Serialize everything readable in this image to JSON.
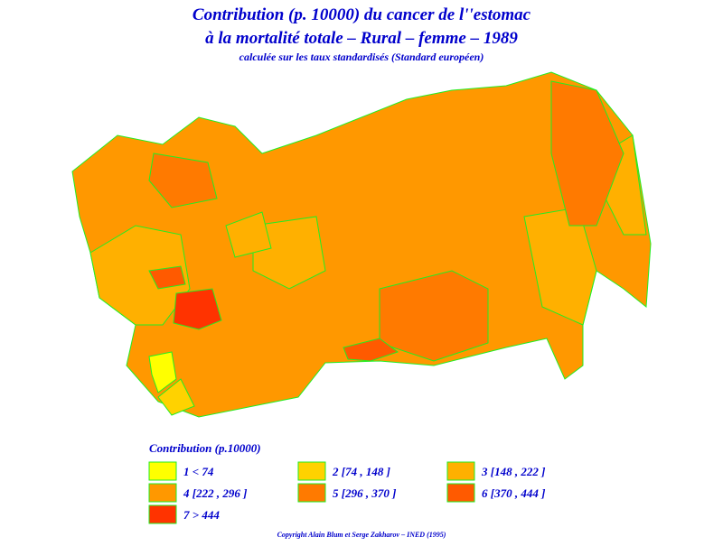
{
  "title": {
    "line1": "Contribution (p. 10000) du cancer de l''estomac",
    "line2": "à la mortalité totale  –  Rural  –  femme  –  1989",
    "subtitle": "calculée sur les taux standardisés (Standard européen)"
  },
  "legend": {
    "title": "Contribution (p.10000)",
    "items": [
      {
        "label": "1  <  74",
        "color": "#ffff00"
      },
      {
        "label": "2  [74 ,  148 ]",
        "color": "#ffd200"
      },
      {
        "label": "3  [148 ,  222 ]",
        "color": "#ffb000"
      },
      {
        "label": "4  [222 ,  296 ]",
        "color": "#ff9800"
      },
      {
        "label": "5  [296 ,  370 ]",
        "color": "#ff7a00"
      },
      {
        "label": "6  [370 ,  444 ]",
        "color": "#ff5a00"
      },
      {
        "label": "7  >  444",
        "color": "#ff3300"
      }
    ]
  },
  "footer": "Copyright Alain Blum et Serge Zakharov  –  INED (1995)"
}
